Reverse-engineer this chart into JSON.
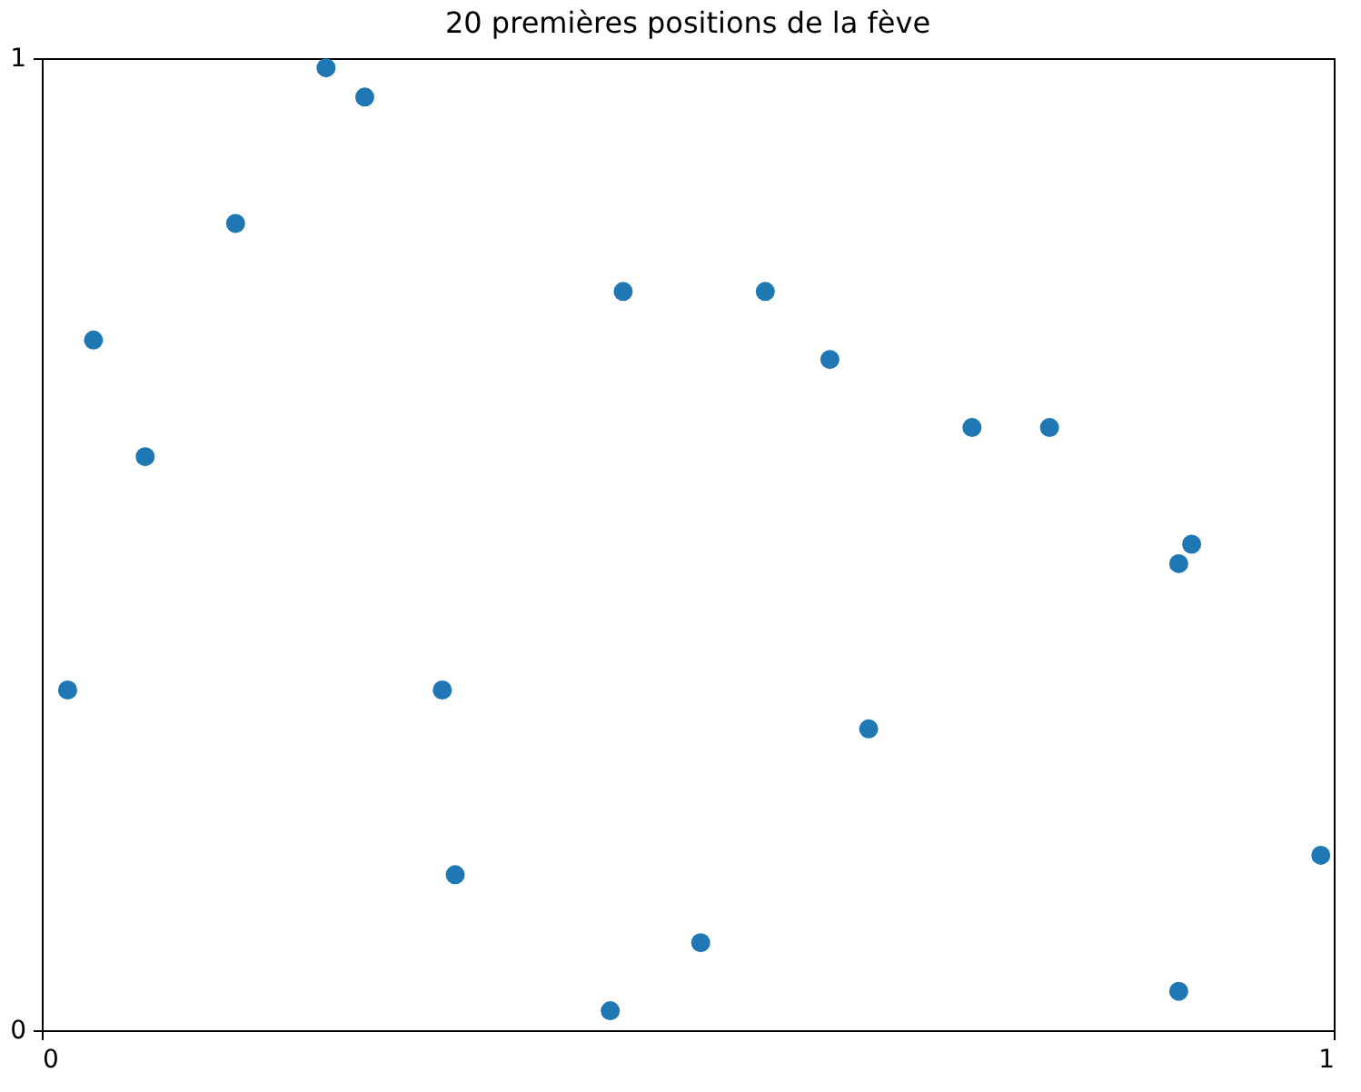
{
  "chart_data": {
    "type": "scatter",
    "title": "20 premières positions de la fève",
    "x": [
      0.02,
      0.04,
      0.08,
      0.15,
      0.22,
      0.25,
      0.31,
      0.32,
      0.44,
      0.45,
      0.51,
      0.56,
      0.61,
      0.64,
      0.72,
      0.78,
      0.88,
      0.89,
      0.88,
      0.99
    ],
    "series": [
      {
        "color": "#1f77b4",
        "values": [
          0.35,
          0.71,
          0.59,
          0.83,
          0.99,
          0.96,
          0.35,
          0.16,
          0.02,
          0.76,
          0.09,
          0.76,
          0.69,
          0.31,
          0.62,
          0.62,
          0.48,
          0.5,
          0.04,
          0.18
        ]
      }
    ],
    "xlim": [
      0,
      1
    ],
    "ylim": [
      0,
      1
    ],
    "xticks": [
      {
        "value": 0,
        "label": "0"
      },
      {
        "value": 1,
        "label": "1"
      }
    ],
    "yticks": [
      {
        "value": 0,
        "label": "0"
      },
      {
        "value": 1,
        "label": "1"
      }
    ],
    "grid": false,
    "marker": "circle"
  }
}
